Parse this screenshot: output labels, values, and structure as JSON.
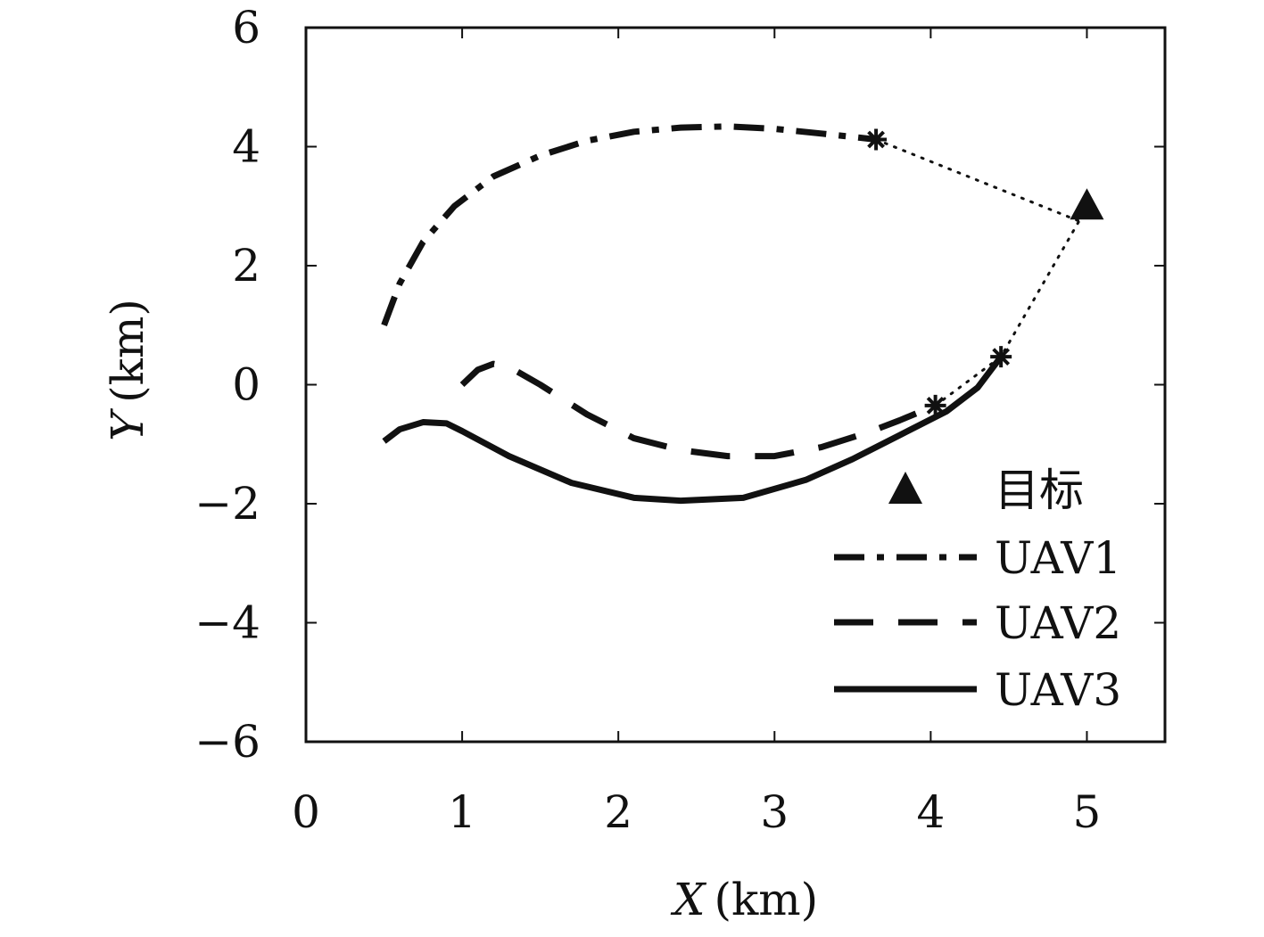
{
  "chart_data": {
    "type": "line",
    "xlabel": {
      "var": "X",
      "unit": "(km)"
    },
    "ylabel": {
      "var": "Y",
      "unit": "(km)"
    },
    "xlim": [
      0,
      5.5
    ],
    "ylim": [
      -6,
      6
    ],
    "xticks": [
      0,
      1,
      2,
      3,
      4,
      5
    ],
    "yticks": [
      -6,
      -4,
      -2,
      0,
      2,
      4,
      6
    ],
    "xtick_labels": [
      "0",
      "1",
      "2",
      "3",
      "4",
      "5"
    ],
    "ytick_labels": [
      "−6",
      "−4",
      "−2",
      "0",
      "2",
      "4",
      "6"
    ],
    "grid": false,
    "legend_position": "lower-right",
    "target": {
      "name": "目标",
      "x": 5.0,
      "y": 3.0,
      "marker": "triangle"
    },
    "series": [
      {
        "name": "UAV1",
        "style": "dashdot",
        "x": [
          0.5,
          0.6,
          0.75,
          0.95,
          1.2,
          1.5,
          1.8,
          2.1,
          2.4,
          2.7,
          3.0,
          3.3,
          3.55,
          3.65
        ],
        "y": [
          1.0,
          1.7,
          2.4,
          3.0,
          3.5,
          3.85,
          4.1,
          4.25,
          4.32,
          4.34,
          4.3,
          4.22,
          4.15,
          4.12
        ]
      },
      {
        "name": "UAV2",
        "style": "dashed",
        "x": [
          1.0,
          1.1,
          1.2,
          1.3,
          1.5,
          1.8,
          2.1,
          2.4,
          2.7,
          3.0,
          3.3,
          3.6,
          3.8,
          4.03
        ],
        "y": [
          0.0,
          0.25,
          0.35,
          0.3,
          0.0,
          -0.5,
          -0.9,
          -1.1,
          -1.2,
          -1.2,
          -1.05,
          -0.8,
          -0.6,
          -0.35
        ]
      },
      {
        "name": "UAV3",
        "style": "solid",
        "x": [
          0.5,
          0.6,
          0.75,
          0.9,
          1.0,
          1.3,
          1.7,
          2.1,
          2.4,
          2.8,
          3.2,
          3.5,
          3.8,
          4.1,
          4.3,
          4.45
        ],
        "y": [
          -0.95,
          -0.75,
          -0.63,
          -0.65,
          -0.78,
          -1.2,
          -1.65,
          -1.9,
          -1.95,
          -1.9,
          -1.6,
          -1.25,
          -0.85,
          -0.45,
          -0.05,
          0.47
        ]
      }
    ],
    "endpoints": [
      {
        "x": 3.65,
        "y": 4.12
      },
      {
        "x": 4.03,
        "y": -0.35
      },
      {
        "x": 4.45,
        "y": 0.47
      }
    ],
    "dotted_connectors": [
      {
        "x": [
          3.65,
          4.95
        ],
        "y": [
          4.12,
          2.75
        ]
      },
      {
        "x": [
          4.03,
          4.45,
          4.95
        ],
        "y": [
          -0.35,
          0.47,
          2.75
        ]
      }
    ]
  }
}
